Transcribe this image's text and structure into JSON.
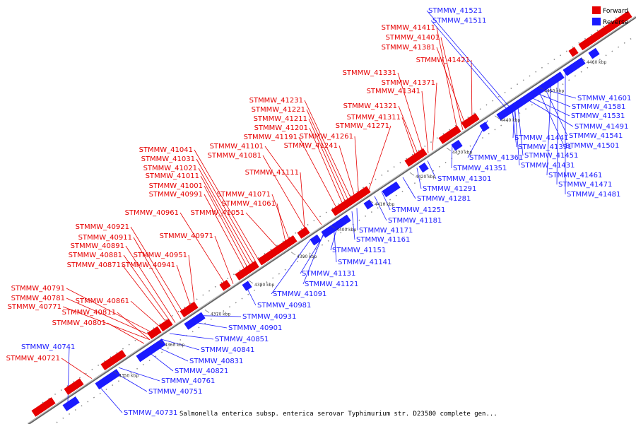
{
  "legend": {
    "forward": {
      "label": "Forward",
      "color": "#e60000"
    },
    "reverse": {
      "label": "Reverse",
      "color": "#1a1aff"
    }
  },
  "caption": "Salmonella enterica subsp. enterica serovar Typhimurium str. D23580 complete gen...",
  "ticks": [
    "4350 kbp",
    "4360 kbp",
    "4370 kbp",
    "4380 kbp",
    "4390 kbp",
    "4400 kbp",
    "4410 kbp",
    "4420 kbp",
    "4430 kbp",
    "4440 kbp",
    "4450 kbp",
    "4460 kbp"
  ],
  "forward_genes": [
    "STMMW_41411",
    "STMMW_41401",
    "STMMW_41381",
    "STMMW_41421",
    "STMMW_41331",
    "STMMW_41371",
    "STMMW_41341",
    "STMMW_41321",
    "STMMW_41311",
    "STMMW_41271",
    "STMMW_41231",
    "STMMW_41221",
    "STMMW_41211",
    "STMMW_41201",
    "STMMW_41191",
    "STMMW_41261",
    "STMMW_41101",
    "STMMW_41081",
    "STMMW_41241",
    "STMMW_41041",
    "STMMW_41031",
    "STMMW_41021",
    "STMMW_41011",
    "STMMW_41111",
    "STMMW_41001",
    "STMMW_40991",
    "STMMW_41071",
    "STMMW_41061",
    "STMMW_41051",
    "STMMW_40961",
    "STMMW_40971",
    "STMMW_40921",
    "STMMW_40911",
    "STMMW_40891",
    "STMMW_40881",
    "STMMW_40951",
    "STMMW_40871",
    "STMMW_40941",
    "STMMW_40791",
    "STMMW_40781",
    "STMMW_40771",
    "STMMW_40861",
    "STMMW_40811",
    "STMMW_40801",
    "STMMW_40721"
  ],
  "reverse_genes": [
    "STMMW_41521",
    "STMMW_41511",
    "STMMW_41601",
    "STMMW_41581",
    "STMMW_41531",
    "STMMW_41491",
    "STMMW_41541",
    "STMMW_41441",
    "STMMW_41391",
    "STMMW_41501",
    "STMMW_41361",
    "STMMW_41451",
    "STMMW_41351",
    "STMMW_41431",
    "STMMW_41301",
    "STMMW_41461",
    "STMMW_41291",
    "STMMW_41471",
    "STMMW_41281",
    "STMMW_41481",
    "STMMW_41251",
    "STMMW_41181",
    "STMMW_41171",
    "STMMW_41161",
    "STMMW_41151",
    "STMMW_41141",
    "STMMW_41131",
    "STMMW_41121",
    "STMMW_41091",
    "STMMW_40981",
    "STMMW_40931",
    "STMMW_40901",
    "STMMW_40851",
    "STMMW_40841",
    "STMMW_40741",
    "STMMW_40831",
    "STMMW_40821",
    "STMMW_40761",
    "STMMW_40751",
    "STMMW_40731"
  ]
}
